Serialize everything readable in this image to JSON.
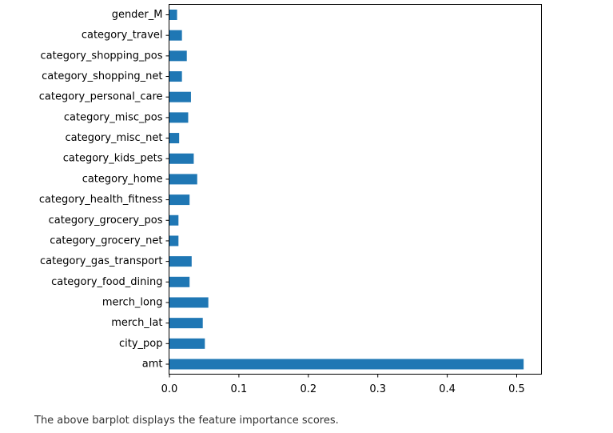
{
  "chart_data": {
    "type": "bar",
    "orientation": "horizontal",
    "categories": [
      "amt",
      "city_pop",
      "merch_lat",
      "merch_long",
      "category_food_dining",
      "category_gas_transport",
      "category_grocery_net",
      "category_grocery_pos",
      "category_health_fitness",
      "category_home",
      "category_kids_pets",
      "category_misc_net",
      "category_misc_pos",
      "category_personal_care",
      "category_shopping_net",
      "category_shopping_pos",
      "category_travel",
      "gender_M"
    ],
    "values": [
      0.51,
      0.051,
      0.048,
      0.056,
      0.029,
      0.032,
      0.013,
      0.013,
      0.029,
      0.04,
      0.035,
      0.014,
      0.027,
      0.031,
      0.018,
      0.025,
      0.018,
      0.011
    ],
    "xticks": [
      "0.0",
      "0.1",
      "0.2",
      "0.3",
      "0.4",
      "0.5"
    ],
    "xlim": [
      0,
      0.54
    ],
    "bar_color": "#1f77b4",
    "grid": false
  },
  "caption": "The above barplot displays the feature importance scores."
}
